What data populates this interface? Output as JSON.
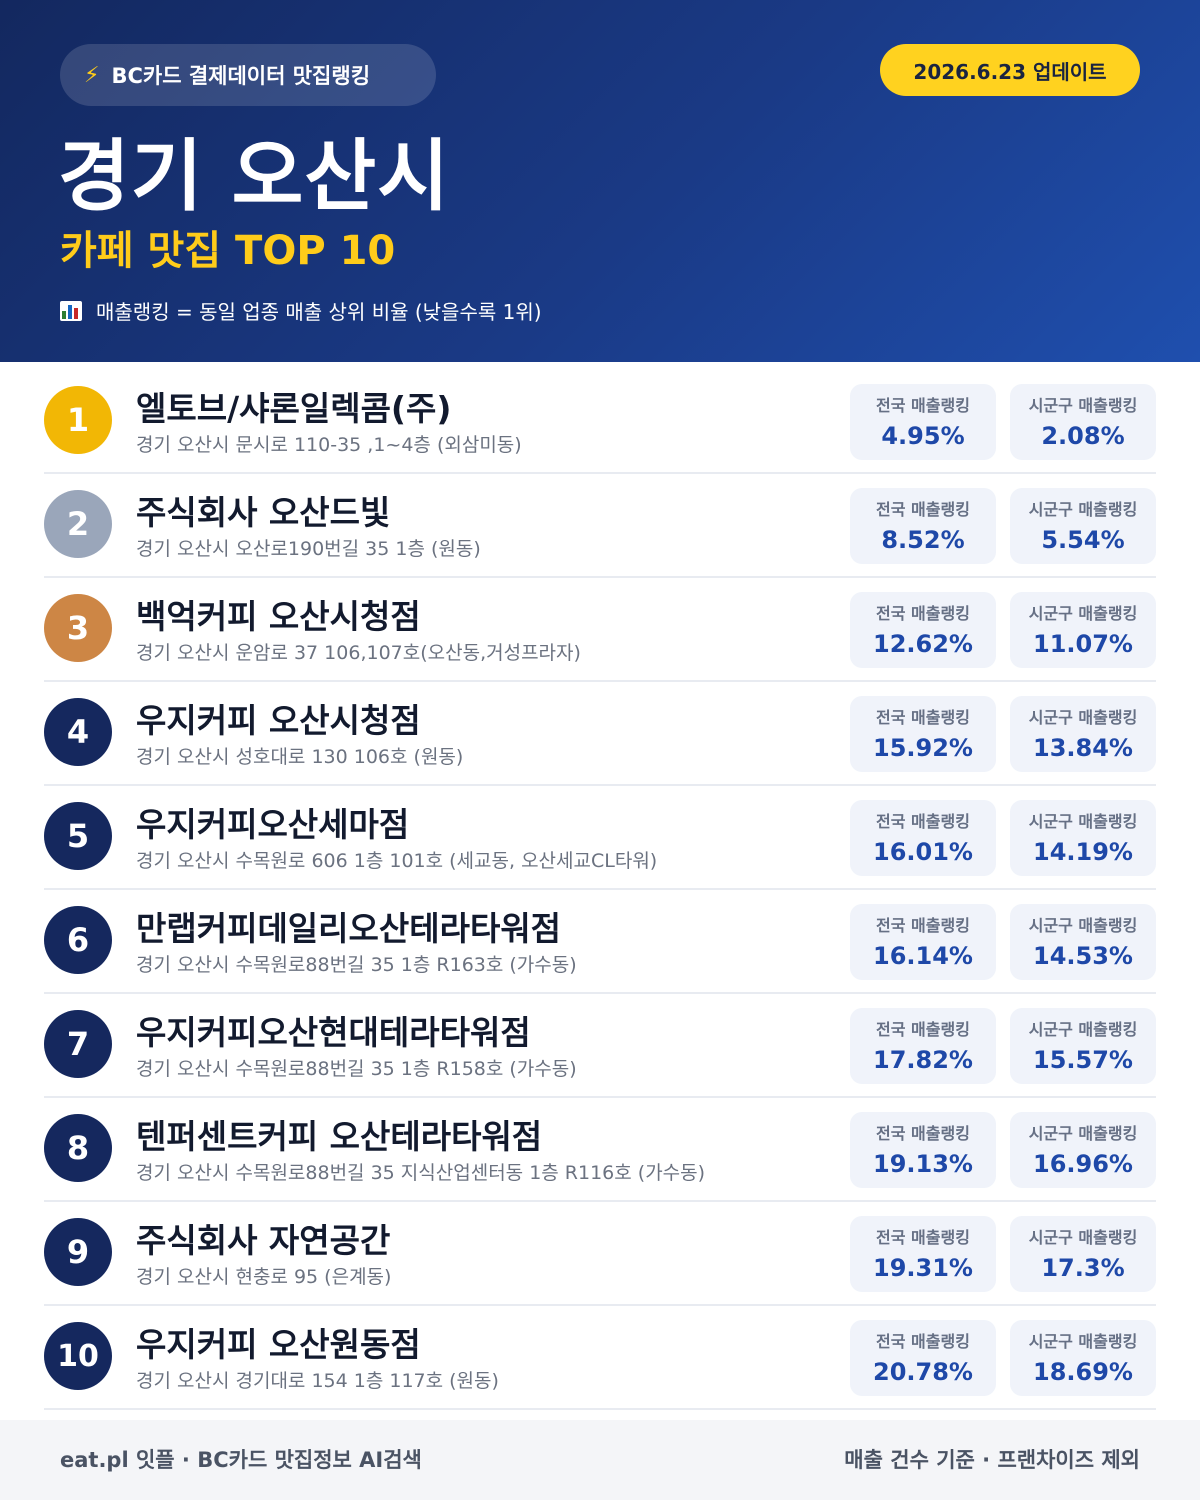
{
  "header": {
    "brand_label": "BC카드 결제데이터 맛집랭킹",
    "brand_icon": "lightning-icon",
    "update_label": "2026.6.23 업데이트",
    "city": "경기 오산시",
    "category": "카페 맛집 TOP 10",
    "note": "매출랭킹 = 동일 업종 매출 상위 비율 (낮을수록 1위)",
    "note_icon": "bar-chart-icon"
  },
  "stat_labels": {
    "national": "전국 매출랭킹",
    "local": "시군구 매출랭킹"
  },
  "colors": {
    "header_bg": "#1a3a86",
    "accent_yellow": "#ffcc1a",
    "gold": "#f2b705",
    "silver": "#9aa6ba",
    "bronze": "#cd8645",
    "navy_badge": "#15285e",
    "stat_value": "#1e48a8"
  },
  "ranking": [
    {
      "rank": "1",
      "name": "엘토브/샤론일렉콤(주)",
      "address": "경기 오산시 문시로 110-35 ,1~4층 (외삼미동)",
      "national": "4.95%",
      "local": "2.08%"
    },
    {
      "rank": "2",
      "name": "주식회사 오산드빛",
      "address": "경기 오산시 오산로190번길 35 1층 (원동)",
      "national": "8.52%",
      "local": "5.54%"
    },
    {
      "rank": "3",
      "name": "백억커피 오산시청점",
      "address": "경기 오산시 운암로 37 106,107호(오산동,거성프라자)",
      "national": "12.62%",
      "local": "11.07%"
    },
    {
      "rank": "4",
      "name": "우지커피 오산시청점",
      "address": "경기 오산시 성호대로 130 106호 (원동)",
      "national": "15.92%",
      "local": "13.84%"
    },
    {
      "rank": "5",
      "name": "우지커피오산세마점",
      "address": "경기 오산시 수목원로 606 1층 101호 (세교동, 오산세교CL타워)",
      "national": "16.01%",
      "local": "14.19%"
    },
    {
      "rank": "6",
      "name": "만랩커피데일리오산테라타워점",
      "address": "경기 오산시 수목원로88번길 35 1층 R163호 (가수동)",
      "national": "16.14%",
      "local": "14.53%"
    },
    {
      "rank": "7",
      "name": "우지커피오산현대테라타워점",
      "address": "경기 오산시 수목원로88번길 35 1층 R158호 (가수동)",
      "national": "17.82%",
      "local": "15.57%"
    },
    {
      "rank": "8",
      "name": "텐퍼센트커피 오산테라타워점",
      "address": "경기 오산시 수목원로88번길 35 지식산업센터동 1층 R116호 (가수동)",
      "national": "19.13%",
      "local": "16.96%"
    },
    {
      "rank": "9",
      "name": "주식회사 자연공간",
      "address": "경기 오산시 현충로 95 (은계동)",
      "national": "19.31%",
      "local": "17.3%"
    },
    {
      "rank": "10",
      "name": "우지커피 오산원동점",
      "address": "경기 오산시 경기대로 154 1층 117호 (원동)",
      "national": "20.78%",
      "local": "18.69%"
    }
  ],
  "footer": {
    "left": "eat.pl 잇플 · BC카드 맛집정보 AI검색",
    "right": "매출 건수 기준 · 프랜차이즈 제외"
  }
}
